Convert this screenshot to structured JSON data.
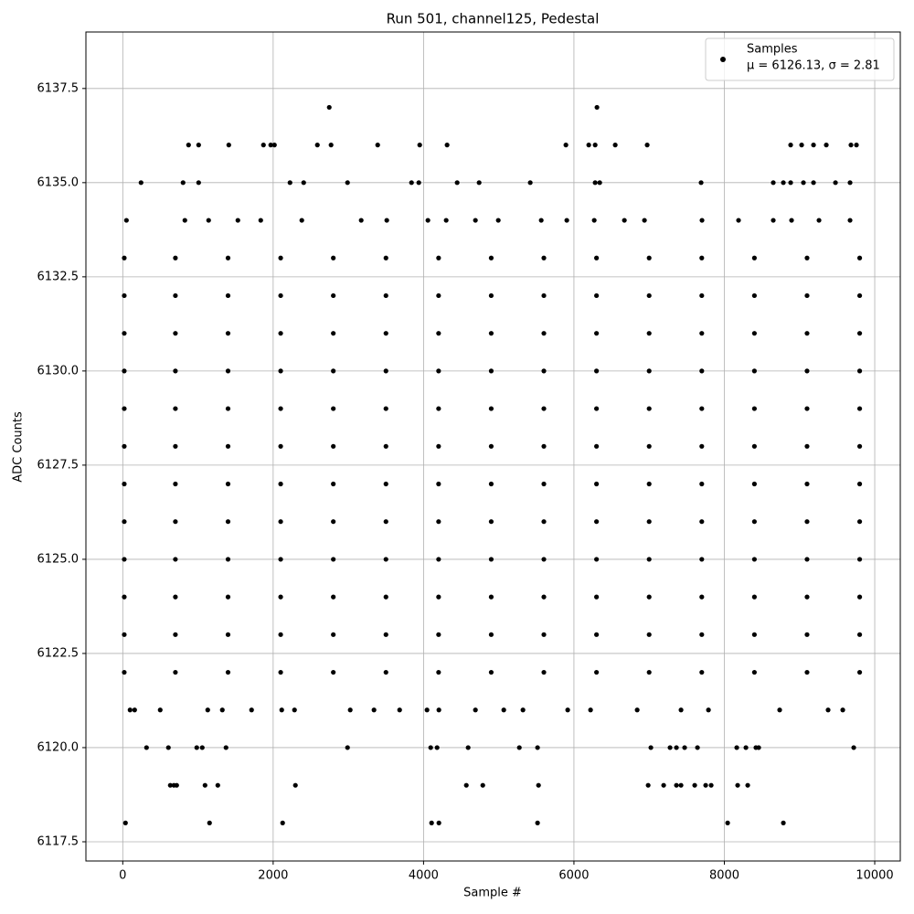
{
  "chart_data": {
    "type": "scatter",
    "title": "Run 501, channel125, Pedestal",
    "x_label": "Sample #",
    "y_label": "ADC Counts",
    "xlim": [
      -490,
      10340
    ],
    "ylim": [
      6116.99,
      6139.0
    ],
    "xticks": [
      0,
      2000,
      4000,
      6000,
      8000,
      10000
    ],
    "yticks": [
      6117.5,
      {
        "value": 6120,
        "label": "6120.0"
      },
      6122.5,
      {
        "value": 6125,
        "label": "6125.0"
      },
      6127.5,
      {
        "value": 6130,
        "label": "6130.0"
      },
      6132.5,
      {
        "value": 6135,
        "label": "6135.0"
      },
      6137.5
    ],
    "grid": true,
    "legend": "upper right",
    "legend_stats": "μ = 6126.13, σ = 2.81",
    "series": [
      {
        "name": "Samples",
        "color": "#000000",
        "x": [
          36,
          1154,
          2126,
          4107,
          4204,
          5516,
          8044,
          8785,
          2746,
          6306,
          875,
          1009,
          1410,
          1871,
          1968,
          2017,
          2588,
          2770,
          3390,
          3949,
          4313,
          5893,
          6197,
          6282,
          6549,
          6974,
          8882,
          9028,
          9186,
          9356,
          9684,
          9757,
          632,
          680,
          717,
          1094,
          1264,
          2296,
          4569,
          4788,
          5529,
          6987,
          7193,
          7363,
          7424,
          7606,
          7752,
          7825,
          8177,
          8311,
          316,
          607,
          984,
          1057,
          1373,
          2989,
          4095,
          4180,
          4593,
          5274,
          5516,
          7023,
          7278,
          7363,
          7472,
          7643,
          8165,
          8287,
          8420,
          8457,
          9721,
          243,
          802,
          1009,
          2224,
          2406,
          2989,
          3840,
          3937,
          4447,
          4739,
          5419,
          6282,
          6343,
          7691,
          8651,
          8785,
          8882,
          9052,
          9186,
          9478,
          9672,
          97,
          158,
          498,
          1130,
          1324,
          1713,
          2114,
          2284,
          3025,
          3341,
          3682,
          4046,
          4204,
          4690,
          5067,
          5322,
          5917,
          6221,
          6841,
          7424,
          7789,
          8736,
          9380,
          9575,
          49,
          826,
          1142,
          1531,
          1835,
          2381,
          3171,
          3511,
          4058,
          4301,
          4690,
          4994,
          5565,
          5905,
          6270,
          6671,
          6938,
          7703,
          8189,
          8651,
          8894,
          9259,
          9672,
          20,
          700,
          1400,
          2100,
          2800,
          3500,
          4200,
          4900,
          5600,
          6300,
          7000,
          7700,
          8400,
          9100,
          9800,
          20,
          700,
          1400,
          2100,
          2800,
          3500,
          4200,
          4900,
          5600,
          6300,
          7000,
          7700,
          8400,
          9100,
          9800,
          20,
          700,
          1400,
          2100,
          2800,
          3500,
          4200,
          4900,
          5600,
          6300,
          7000,
          7700,
          8400,
          9100,
          9800,
          20,
          700,
          1400,
          2100,
          2800,
          3500,
          4200,
          4900,
          5600,
          6300,
          7000,
          7700,
          8400,
          9100,
          9800,
          20,
          700,
          1400,
          2100,
          2800,
          3500,
          4200,
          4900,
          5600,
          6300,
          7000,
          7700,
          8400,
          9100,
          9800,
          20,
          700,
          1400,
          2100,
          2800,
          3500,
          4200,
          4900,
          5600,
          6300,
          7000,
          7700,
          8400,
          9100,
          9800,
          20,
          700,
          1400,
          2100,
          2800,
          3500,
          4200,
          4900,
          5600,
          6300,
          7000,
          7700,
          8400,
          9100,
          9800,
          20,
          700,
          1400,
          2100,
          2800,
          3500,
          4200,
          4900,
          5600,
          6300,
          7000,
          7700,
          8400,
          9100,
          9800,
          20,
          700,
          1400,
          2100,
          2800,
          3500,
          4200,
          4900,
          5600,
          6300,
          7000,
          7700,
          8400,
          9100,
          9800,
          20,
          700,
          1400,
          2100,
          2800,
          3500,
          4200,
          4900,
          5600,
          6300,
          7000,
          7700,
          8400,
          9100,
          9800,
          20,
          700,
          1400,
          2100,
          2800,
          3500,
          4200,
          4900,
          5600,
          6300,
          7000,
          7700,
          8400,
          9100,
          9800,
          20,
          700,
          1400,
          2100,
          2800,
          3500,
          4200,
          4900,
          5600,
          6300,
          7000,
          7700,
          8400,
          9100,
          9800
        ],
        "values": [
          6118,
          6118,
          6118,
          6118,
          6118,
          6118,
          6118,
          6118,
          6137,
          6137,
          6136,
          6136,
          6136,
          6136,
          6136,
          6136,
          6136,
          6136,
          6136,
          6136,
          6136,
          6136,
          6136,
          6136,
          6136,
          6136,
          6136,
          6136,
          6136,
          6136,
          6136,
          6136,
          6119,
          6119,
          6119,
          6119,
          6119,
          6119,
          6119,
          6119,
          6119,
          6119,
          6119,
          6119,
          6119,
          6119,
          6119,
          6119,
          6119,
          6119,
          6120,
          6120,
          6120,
          6120,
          6120,
          6120,
          6120,
          6120,
          6120,
          6120,
          6120,
          6120,
          6120,
          6120,
          6120,
          6120,
          6120,
          6120,
          6120,
          6120,
          6120,
          6135,
          6135,
          6135,
          6135,
          6135,
          6135,
          6135,
          6135,
          6135,
          6135,
          6135,
          6135,
          6135,
          6135,
          6135,
          6135,
          6135,
          6135,
          6135,
          6135,
          6135,
          6121,
          6121,
          6121,
          6121,
          6121,
          6121,
          6121,
          6121,
          6121,
          6121,
          6121,
          6121,
          6121,
          6121,
          6121,
          6121,
          6121,
          6121,
          6121,
          6121,
          6121,
          6121,
          6121,
          6121,
          6134,
          6134,
          6134,
          6134,
          6134,
          6134,
          6134,
          6134,
          6134,
          6134,
          6134,
          6134,
          6134,
          6134,
          6134,
          6134,
          6134,
          6134,
          6134,
          6134,
          6134,
          6134,
          6134,
          6122,
          6122,
          6122,
          6122,
          6122,
          6122,
          6122,
          6122,
          6122,
          6122,
          6122,
          6122,
          6122,
          6122,
          6122,
          6123,
          6123,
          6123,
          6123,
          6123,
          6123,
          6123,
          6123,
          6123,
          6123,
          6123,
          6123,
          6123,
          6123,
          6123,
          6124,
          6124,
          6124,
          6124,
          6124,
          6124,
          6124,
          6124,
          6124,
          6124,
          6124,
          6124,
          6124,
          6124,
          6124,
          6125,
          6125,
          6125,
          6125,
          6125,
          6125,
          6125,
          6125,
          6125,
          6125,
          6125,
          6125,
          6125,
          6125,
          6125,
          6126,
          6126,
          6126,
          6126,
          6126,
          6126,
          6126,
          6126,
          6126,
          6126,
          6126,
          6126,
          6126,
          6126,
          6126,
          6127,
          6127,
          6127,
          6127,
          6127,
          6127,
          6127,
          6127,
          6127,
          6127,
          6127,
          6127,
          6127,
          6127,
          6127,
          6128,
          6128,
          6128,
          6128,
          6128,
          6128,
          6128,
          6128,
          6128,
          6128,
          6128,
          6128,
          6128,
          6128,
          6128,
          6129,
          6129,
          6129,
          6129,
          6129,
          6129,
          6129,
          6129,
          6129,
          6129,
          6129,
          6129,
          6129,
          6129,
          6129,
          6130,
          6130,
          6130,
          6130,
          6130,
          6130,
          6130,
          6130,
          6130,
          6130,
          6130,
          6130,
          6130,
          6130,
          6130,
          6131,
          6131,
          6131,
          6131,
          6131,
          6131,
          6131,
          6131,
          6131,
          6131,
          6131,
          6131,
          6131,
          6131,
          6131,
          6132,
          6132,
          6132,
          6132,
          6132,
          6132,
          6132,
          6132,
          6132,
          6132,
          6132,
          6132,
          6132,
          6132,
          6132,
          6133,
          6133,
          6133,
          6133,
          6133,
          6133,
          6133,
          6133,
          6133,
          6133,
          6133,
          6133,
          6133,
          6133,
          6133
        ]
      }
    ]
  }
}
